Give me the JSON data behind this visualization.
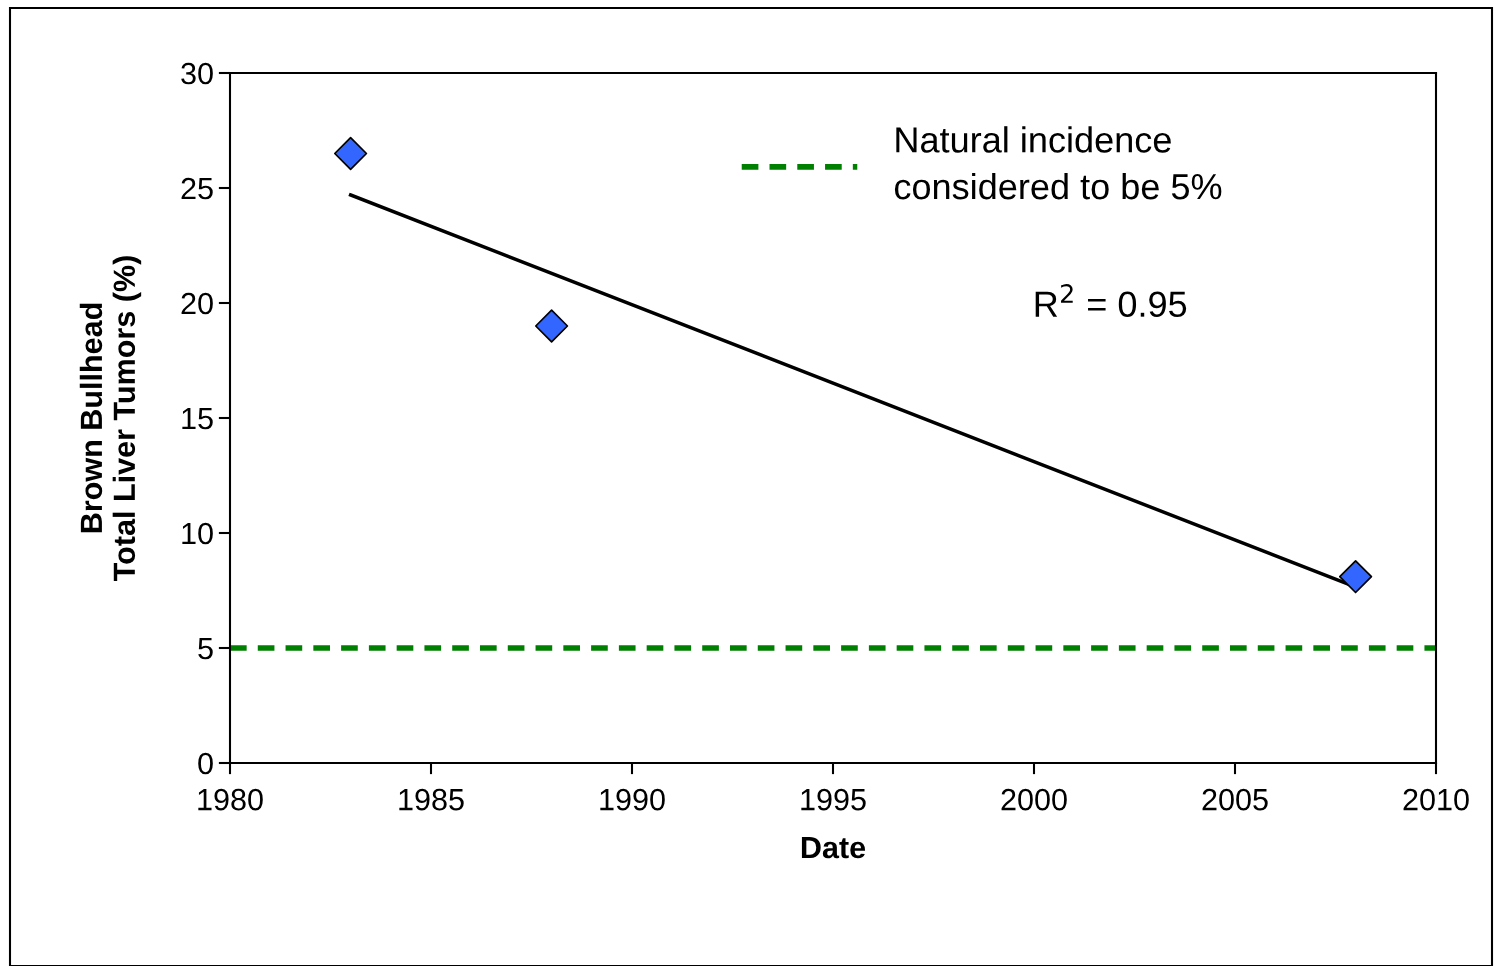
{
  "chart_data": {
    "type": "scatter",
    "xlabel": "Date",
    "ylabel": "Brown Bullhead\nTotal Liver Tumors (%)",
    "series": [
      {
        "color": "#3366ff",
        "x": [
          1983,
          1988,
          2008
        ],
        "values": [
          26.5,
          19.0,
          8.1
        ],
        "marker": "diamond"
      },
      {
        "type": "line",
        "color": "#000000",
        "x": [
          1983,
          2008
        ],
        "values": [
          24.7,
          7.65
        ],
        "marker": "none"
      }
    ],
    "ref_lines": [
      {
        "axis": "y",
        "value": 5,
        "label": "Natural incidence\nconsidered to be 5%",
        "color": "#008000",
        "line_style": "dashed"
      }
    ],
    "annotations": [
      "R$^{2}$ = 0.95"
    ],
    "xlim": [
      1980,
      2010
    ],
    "xticks": [
      1980,
      1985,
      1990,
      1995,
      2000,
      2005,
      2010
    ],
    "ylim": [
      0,
      30
    ],
    "yticks": [
      0,
      5,
      10,
      15,
      20,
      25,
      30
    ],
    "grid": false,
    "legend": "top right"
  }
}
